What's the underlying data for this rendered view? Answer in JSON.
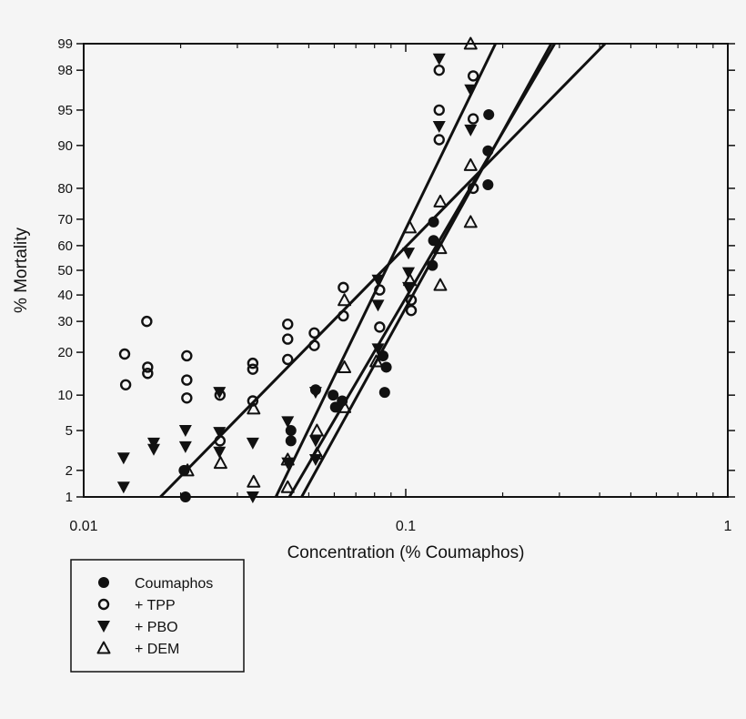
{
  "chart_data": {
    "type": "scatter",
    "xlabel": "Concentration (% Coumaphos)",
    "ylabel": "% Mortality",
    "x_scale": "log",
    "y_scale": "probit",
    "xlim": [
      0.01,
      1
    ],
    "ylim": [
      1,
      99
    ],
    "x_ticks": [
      {
        "v": 0.01,
        "label": "0.01"
      },
      {
        "v": 0.1,
        "label": "0.1"
      },
      {
        "v": 1,
        "label": "1"
      }
    ],
    "y_ticks": [
      {
        "v": 1,
        "label": "1"
      },
      {
        "v": 2,
        "label": "2"
      },
      {
        "v": 5,
        "label": "5"
      },
      {
        "v": 10,
        "label": "10"
      },
      {
        "v": 20,
        "label": "20"
      },
      {
        "v": 30,
        "label": "30"
      },
      {
        "v": 40,
        "label": "40"
      },
      {
        "v": 50,
        "label": "50"
      },
      {
        "v": 60,
        "label": "60"
      },
      {
        "v": 70,
        "label": "70"
      },
      {
        "v": 80,
        "label": "80"
      },
      {
        "v": 90,
        "label": "90"
      },
      {
        "v": 95,
        "label": "95"
      },
      {
        "v": 98,
        "label": "98"
      },
      {
        "v": 99,
        "label": "99"
      }
    ],
    "legend_position": "bottom-left",
    "series": [
      {
        "name": "Coumaphos",
        "marker": "filled-circle",
        "points": [
          [
            0.0207,
            1
          ],
          [
            0.0205,
            2
          ],
          [
            0.044,
            4
          ],
          [
            0.044,
            5
          ],
          [
            0.0525,
            11
          ],
          [
            0.0595,
            10
          ],
          [
            0.0605,
            8
          ],
          [
            0.0635,
            9
          ],
          [
            0.085,
            19
          ],
          [
            0.087,
            16
          ],
          [
            0.086,
            10.5
          ],
          [
            0.121,
            52
          ],
          [
            0.122,
            62
          ],
          [
            0.122,
            69
          ],
          [
            0.18,
            81
          ],
          [
            0.18,
            89
          ],
          [
            0.181,
            94.5
          ]
        ],
        "fit": [
          [
            0.0475,
            1
          ],
          [
            0.283,
            99
          ]
        ]
      },
      {
        "name": "+ TPP",
        "marker": "open-circle",
        "points": [
          [
            0.0134,
            19.5
          ],
          [
            0.0135,
            12
          ],
          [
            0.0157,
            30
          ],
          [
            0.0158,
            16
          ],
          [
            0.0158,
            14.5
          ],
          [
            0.0209,
            19
          ],
          [
            0.0209,
            13
          ],
          [
            0.0209,
            9.5
          ],
          [
            0.0265,
            10
          ],
          [
            0.0265,
            4
          ],
          [
            0.0335,
            17
          ],
          [
            0.0335,
            15.5
          ],
          [
            0.0335,
            9
          ],
          [
            0.043,
            29
          ],
          [
            0.043,
            24
          ],
          [
            0.043,
            18
          ],
          [
            0.052,
            26
          ],
          [
            0.052,
            22
          ],
          [
            0.064,
            43
          ],
          [
            0.064,
            32
          ],
          [
            0.083,
            42
          ],
          [
            0.083,
            28
          ],
          [
            0.104,
            38
          ],
          [
            0.104,
            34
          ],
          [
            0.127,
            98
          ],
          [
            0.127,
            95
          ],
          [
            0.127,
            91
          ],
          [
            0.162,
            97.7
          ],
          [
            0.162,
            94
          ],
          [
            0.162,
            80
          ]
        ],
        "fit": [
          [
            0.0173,
            1
          ],
          [
            0.416,
            99
          ]
        ]
      },
      {
        "name": "+ PBO",
        "marker": "filled-triangle-down",
        "points": [
          [
            0.0133,
            2.7
          ],
          [
            0.0133,
            1.3
          ],
          [
            0.0165,
            3.8
          ],
          [
            0.0165,
            3.3
          ],
          [
            0.0207,
            5
          ],
          [
            0.0207,
            3.5
          ],
          [
            0.0264,
            10.5
          ],
          [
            0.0264,
            4.8
          ],
          [
            0.0264,
            3.1
          ],
          [
            0.0335,
            3.8
          ],
          [
            0.0335,
            1
          ],
          [
            0.043,
            6
          ],
          [
            0.043,
            2.4
          ],
          [
            0.0525,
            10.5
          ],
          [
            0.0525,
            4
          ],
          [
            0.0525,
            2.6
          ],
          [
            0.082,
            46
          ],
          [
            0.082,
            36
          ],
          [
            0.082,
            21
          ],
          [
            0.102,
            57
          ],
          [
            0.102,
            49
          ],
          [
            0.102,
            43
          ],
          [
            0.127,
            98.5
          ],
          [
            0.127,
            93
          ],
          [
            0.159,
            96.8
          ],
          [
            0.159,
            92.5
          ]
        ],
        "fit": [
          [
            0.0395,
            1
          ],
          [
            0.19,
            99
          ]
        ]
      },
      {
        "name": "+ DEM",
        "marker": "open-triangle-up",
        "points": [
          [
            0.021,
            2
          ],
          [
            0.0266,
            2.4
          ],
          [
            0.0337,
            1.5
          ],
          [
            0.0337,
            7.8
          ],
          [
            0.043,
            2.6
          ],
          [
            0.043,
            1.3
          ],
          [
            0.053,
            5
          ],
          [
            0.053,
            3
          ],
          [
            0.0645,
            16
          ],
          [
            0.0645,
            8
          ],
          [
            0.0645,
            38
          ],
          [
            0.081,
            17.5
          ],
          [
            0.103,
            67
          ],
          [
            0.103,
            46
          ],
          [
            0.128,
            76
          ],
          [
            0.128,
            59
          ],
          [
            0.128,
            44
          ],
          [
            0.159,
            99
          ],
          [
            0.159,
            86
          ],
          [
            0.159,
            69
          ]
        ],
        "fit": [
          [
            0.0435,
            1
          ],
          [
            0.29,
            99
          ]
        ]
      }
    ]
  }
}
